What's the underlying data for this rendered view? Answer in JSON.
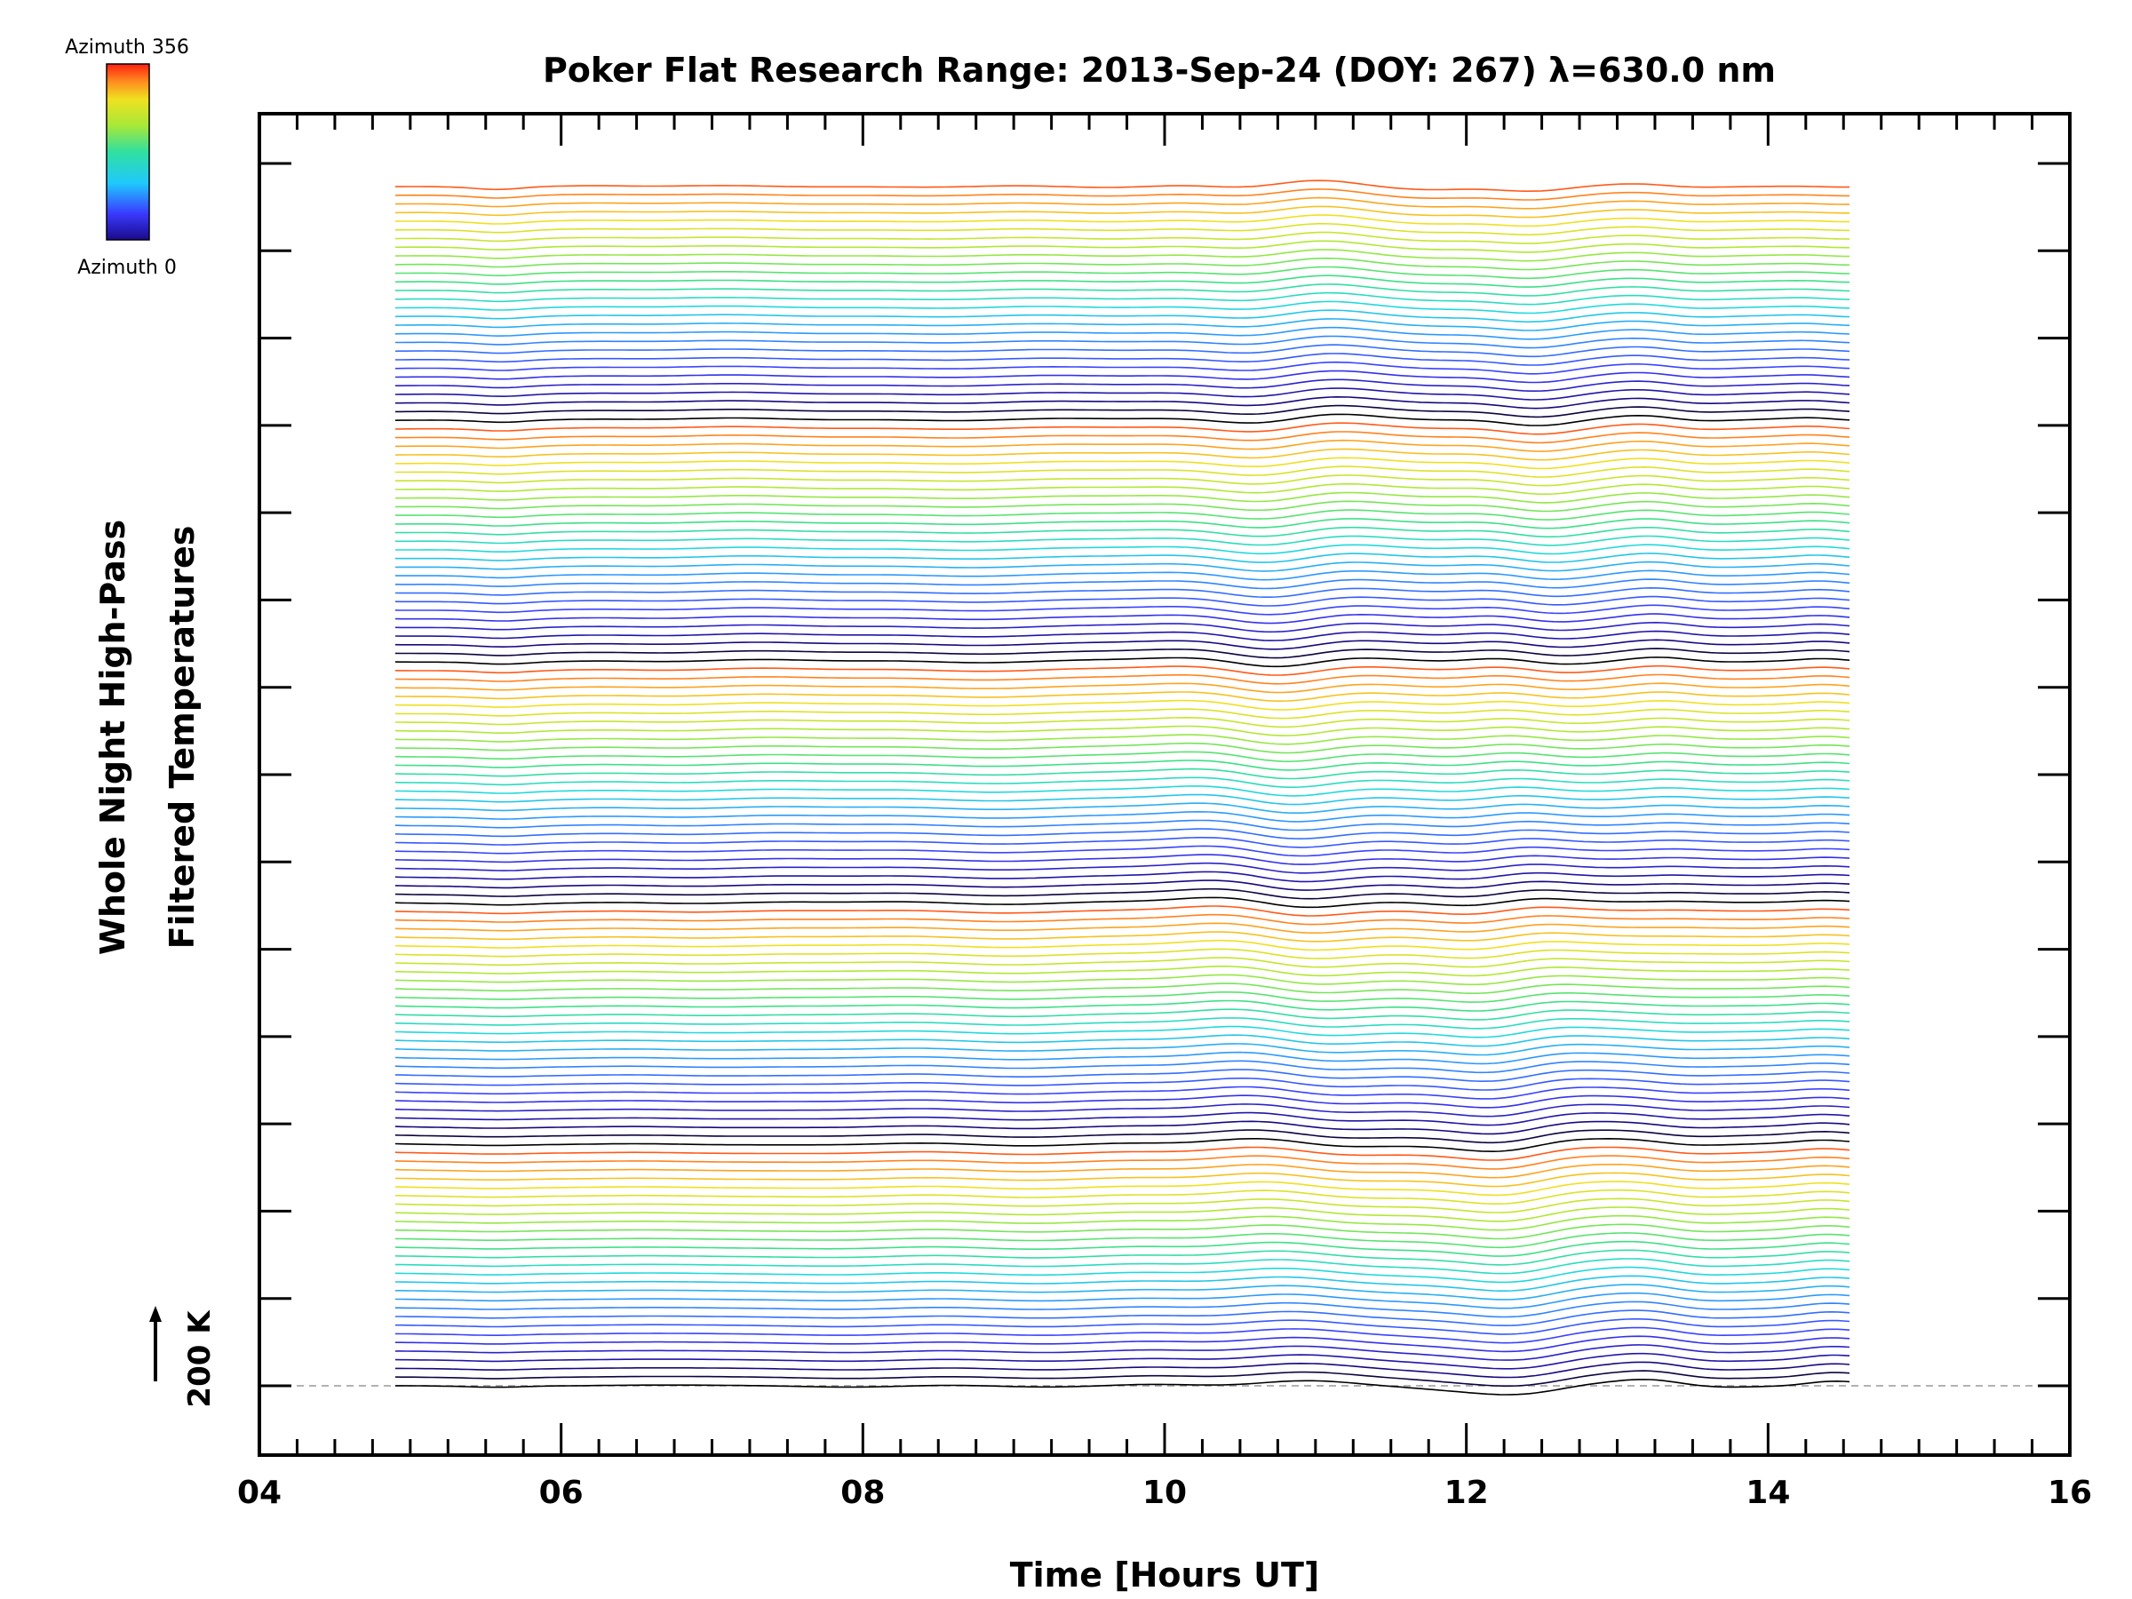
{
  "chart_data": {
    "type": "line",
    "title": "Poker Flat Research Range: 2013-Sep-24 (DOY: 267) λ=630.0 nm",
    "xlabel": "Time [Hours UT]",
    "ylabel": [
      "Whole Night High-Pass",
      "Filtered Temperatures"
    ],
    "xlim": [
      4,
      16
    ],
    "x_ticks": [
      "04",
      "06",
      "08",
      "10",
      "12",
      "14",
      "16"
    ],
    "x_range_data": [
      4.9,
      14.55
    ],
    "scale_bar_label": "200 K",
    "grid": false,
    "series_count": 140,
    "azimuth_cycles": 5,
    "colorbar": {
      "top_label": "Azimuth 356",
      "bottom_label": "Azimuth 0",
      "min": 0,
      "max": 356
    },
    "colors": {
      "colormap": [
        "#000000",
        "#1a0a8c",
        "#3a3aff",
        "#2f8fff",
        "#20d8e0",
        "#40e080",
        "#a8e838",
        "#f0e020",
        "#ff8c20",
        "#ff3010"
      ]
    }
  }
}
